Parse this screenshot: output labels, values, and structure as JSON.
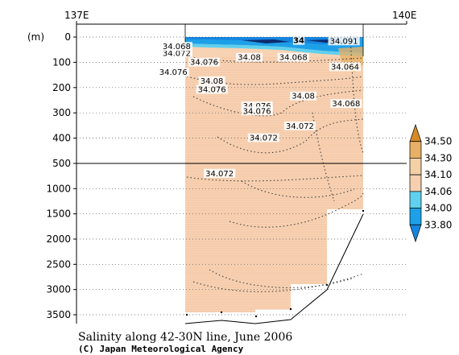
{
  "chart_data": {
    "type": "contour-section",
    "title": "Salinity along 42-30N line, June 2006",
    "credit": "(C) Japan Meteorological Agency",
    "ylabel": "(m)",
    "x_ticks": [
      "137E",
      "140E"
    ],
    "x_range": [
      137,
      140
    ],
    "y_ticks_upper": [
      0,
      100,
      200,
      300,
      400,
      500
    ],
    "y_ticks_lower": [
      1000,
      1500,
      2000,
      2500,
      3000,
      3500
    ],
    "y_range": [
      0,
      3750
    ],
    "y_axis_break": 500,
    "colorbar": {
      "levels": [
        "34.50",
        "34.30",
        "34.10",
        "34.06",
        "34.00",
        "33.80"
      ],
      "colors": [
        "#d48a28",
        "#e6b067",
        "#f4d0a6",
        "#f5cfaf",
        "#5fd0ee",
        "#1ea0e8",
        "#1585e0"
      ]
    },
    "fill_color": "#f7d2b3",
    "contour_labels": [
      {
        "text": "34.072",
        "x": 137.91,
        "y": 68
      },
      {
        "text": "34.068",
        "x": 137.91,
        "y": 42
      },
      {
        "text": "34.076",
        "x": 137.88,
        "y": 144
      },
      {
        "text": "34.076",
        "x": 138.16,
        "y": 104
      },
      {
        "text": "34.08",
        "x": 138.57,
        "y": 85
      },
      {
        "text": "34.068",
        "x": 138.97,
        "y": 85
      },
      {
        "text": "34.08",
        "x": 138.23,
        "y": 178
      },
      {
        "text": "34.076",
        "x": 138.23,
        "y": 212
      },
      {
        "text": "34.076",
        "x": 138.64,
        "y": 277
      },
      {
        "text": "34.076",
        "x": 138.64,
        "y": 297
      },
      {
        "text": "34.08",
        "x": 139.06,
        "y": 238
      },
      {
        "text": "34.068",
        "x": 139.45,
        "y": 268
      },
      {
        "text": "34.072",
        "x": 139.03,
        "y": 356
      },
      {
        "text": "34.072",
        "x": 138.7,
        "y": 403
      },
      {
        "text": "34.072",
        "x": 138.3,
        "y": 720
      },
      {
        "text": "34",
        "x": 139.02,
        "y": 18
      },
      {
        "text": "34.091",
        "x": 139.43,
        "y": 20
      },
      {
        "text": "34.064",
        "x": 139.44,
        "y": 122
      }
    ]
  }
}
